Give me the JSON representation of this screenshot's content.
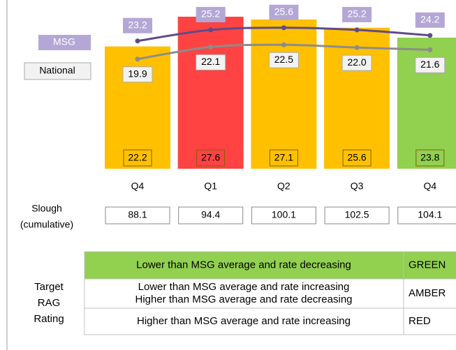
{
  "chart_data": {
    "type": "bar",
    "categories": [
      "Q4",
      "Q1",
      "Q2",
      "Q3",
      "Q4"
    ],
    "values": [
      22.2,
      27.6,
      27.1,
      25.6,
      23.8
    ],
    "colors": [
      "#ffc000",
      "#ff4343",
      "#ffc000",
      "#ffc000",
      "#92d050"
    ],
    "ylim": [
      0,
      30
    ],
    "lines": [
      {
        "name": "MSG",
        "color": "#5f4b8b",
        "label_color": "#b4a7d6",
        "values": [
          23.2,
          25.2,
          25.6,
          25.2,
          24.2
        ]
      },
      {
        "name": "National",
        "color": "#8c8c8c",
        "label_color": "#f2f2f2",
        "values": [
          19.9,
          22.1,
          22.5,
          22.0,
          21.6
        ],
        "value_labels": [
          "19.9",
          "22.1",
          "22.5",
          "22.0",
          "21.6"
        ]
      }
    ],
    "cumulative": {
      "label": [
        "Slough",
        "(cumulative)"
      ],
      "values": [
        88.1,
        94.4,
        100.1,
        102.5,
        104.1
      ]
    }
  },
  "rag": {
    "label": [
      "Target",
      "RAG",
      "Rating"
    ],
    "rows": [
      {
        "criteria": [
          "Lower than MSG average and rate decreasing"
        ],
        "rating": "GREEN",
        "color": "#92d050"
      },
      {
        "criteria": [
          "Lower than MSG average and rate increasing",
          "Higher than MSG average and rate decreasing"
        ],
        "rating": "AMBER",
        "color": "#ffffff"
      },
      {
        "criteria": [
          "Higher than MSG average and rate increasing"
        ],
        "rating": "RED",
        "color": "#ffffff"
      }
    ]
  }
}
